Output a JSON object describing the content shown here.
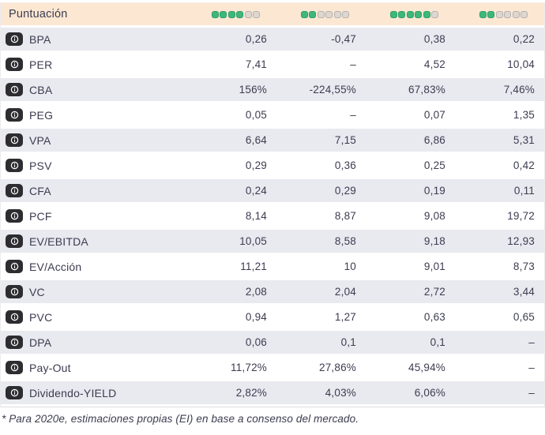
{
  "header": {
    "label": "Puntuación",
    "max_dots": 6,
    "scores": [
      4,
      2,
      5,
      2
    ]
  },
  "rows": [
    {
      "label": "BPA",
      "values": [
        "0,26",
        "-0,47",
        "0,38",
        "0,22"
      ]
    },
    {
      "label": "PER",
      "values": [
        "7,41",
        "–",
        "4,52",
        "10,04"
      ]
    },
    {
      "label": "CBA",
      "values": [
        "156%",
        "-224,55%",
        "67,83%",
        "7,46%"
      ]
    },
    {
      "label": "PEG",
      "values": [
        "0,05",
        "–",
        "0,07",
        "1,35"
      ]
    },
    {
      "label": "VPA",
      "values": [
        "6,64",
        "7,15",
        "6,86",
        "5,31"
      ]
    },
    {
      "label": "PSV",
      "values": [
        "0,29",
        "0,36",
        "0,25",
        "0,42"
      ]
    },
    {
      "label": "CFA",
      "values": [
        "0,24",
        "0,29",
        "0,19",
        "0,11"
      ]
    },
    {
      "label": "PCF",
      "values": [
        "8,14",
        "8,87",
        "9,08",
        "19,72"
      ]
    },
    {
      "label": "EV/EBITDA",
      "values": [
        "10,05",
        "8,58",
        "9,18",
        "12,93"
      ]
    },
    {
      "label": "EV/Acción",
      "values": [
        "11,21",
        "10",
        "9,01",
        "8,73"
      ]
    },
    {
      "label": "VC",
      "values": [
        "2,08",
        "2,04",
        "2,72",
        "3,44"
      ]
    },
    {
      "label": "PVC",
      "values": [
        "0,94",
        "1,27",
        "0,63",
        "0,65"
      ]
    },
    {
      "label": "DPA",
      "values": [
        "0,06",
        "0,1",
        "0,1",
        "–"
      ]
    },
    {
      "label": "Pay-Out",
      "values": [
        "11,72%",
        "27,86%",
        "45,94%",
        "–"
      ]
    },
    {
      "label": "Dividendo-YIELD",
      "values": [
        "2,82%",
        "4,03%",
        "6,06%",
        "–"
      ]
    }
  ],
  "footnote": "* Para 2020e, estimaciones propias (EI) en base a consenso del mercado.",
  "colors": {
    "header_bg": "#fce7d3",
    "row_alt_bg": "#e9e9f0",
    "dot_filled": "#3eb77a",
    "dot_empty": "#ddd7d2",
    "text": "#3c3c50",
    "info_badge_bg": "#2d2d31"
  },
  "icons": {
    "info": "info-icon",
    "score_dot_filled": "score-dot-filled",
    "score_dot_empty": "score-dot-empty"
  }
}
